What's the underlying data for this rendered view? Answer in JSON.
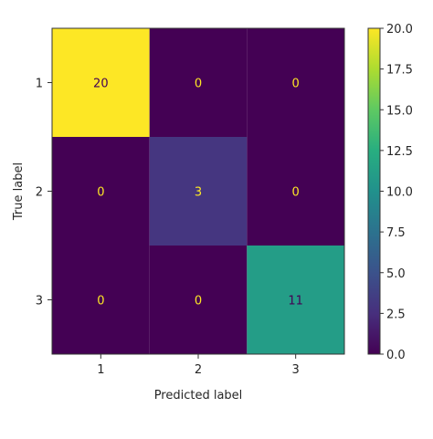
{
  "chart_data": {
    "type": "heatmap",
    "title": "",
    "xlabel": "Predicted label",
    "ylabel": "True label",
    "x_categories": [
      "1",
      "2",
      "3"
    ],
    "y_categories": [
      "1",
      "2",
      "3"
    ],
    "values": [
      [
        20,
        0,
        0
      ],
      [
        0,
        3,
        0
      ],
      [
        0,
        0,
        11
      ]
    ],
    "cell_labels": [
      [
        "20",
        "0",
        "0"
      ],
      [
        "0",
        "3",
        "0"
      ],
      [
        "0",
        "0",
        "11"
      ]
    ],
    "colormap": "viridis",
    "colorbar": {
      "range": [
        0,
        20
      ],
      "ticks": [
        0.0,
        2.5,
        5.0,
        7.5,
        10.0,
        12.5,
        15.0,
        17.5,
        20.0
      ],
      "tick_labels": [
        "0.0",
        "2.5",
        "5.0",
        "7.5",
        "10.0",
        "12.5",
        "15.0",
        "17.5",
        "20.0"
      ]
    },
    "colors": {
      "low": "#440154",
      "mid": "#21918c",
      "high": "#fde725",
      "text_on_dark": "#fde725",
      "text_on_light": "#440154"
    }
  }
}
